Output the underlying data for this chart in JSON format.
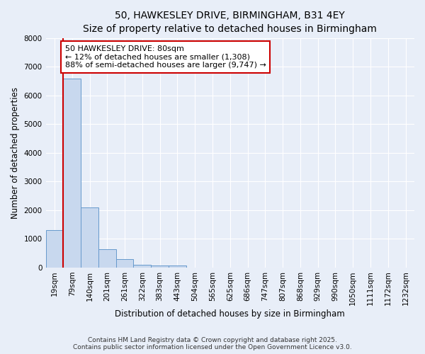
{
  "title_line1": "50, HAWKESLEY DRIVE, BIRMINGHAM, B31 4EY",
  "title_line2": "Size of property relative to detached houses in Birmingham",
  "xlabel": "Distribution of detached houses by size in Birmingham",
  "ylabel": "Number of detached properties",
  "categories": [
    "19sqm",
    "79sqm",
    "140sqm",
    "201sqm",
    "261sqm",
    "322sqm",
    "383sqm",
    "443sqm",
    "504sqm",
    "565sqm",
    "625sqm",
    "686sqm",
    "747sqm",
    "807sqm",
    "868sqm",
    "929sqm",
    "990sqm",
    "1050sqm",
    "1111sqm",
    "1172sqm",
    "1232sqm"
  ],
  "values": [
    1308,
    6600,
    2100,
    650,
    280,
    100,
    70,
    70,
    0,
    0,
    0,
    0,
    0,
    0,
    0,
    0,
    0,
    0,
    0,
    0,
    0
  ],
  "bar_color": "#c8d8ee",
  "bar_edge_color": "#6699cc",
  "red_line_index": 1,
  "red_line_color": "#cc0000",
  "ylim": [
    0,
    8000
  ],
  "yticks": [
    0,
    1000,
    2000,
    3000,
    4000,
    5000,
    6000,
    7000,
    8000
  ],
  "annotation_text": "50 HAWKESLEY DRIVE: 80sqm\n← 12% of detached houses are smaller (1,308)\n88% of semi-detached houses are larger (9,747) →",
  "annotation_box_facecolor": "#ffffff",
  "annotation_box_edgecolor": "#cc0000",
  "footer_line1": "Contains HM Land Registry data © Crown copyright and database right 2025.",
  "footer_line2": "Contains public sector information licensed under the Open Government Licence v3.0.",
  "background_color": "#e8eef8",
  "plot_background_color": "#e8eef8",
  "title_fontsize": 10,
  "subtitle_fontsize": 9,
  "axis_label_fontsize": 8.5,
  "tick_fontsize": 7.5,
  "annotation_fontsize": 8,
  "footer_fontsize": 6.5
}
